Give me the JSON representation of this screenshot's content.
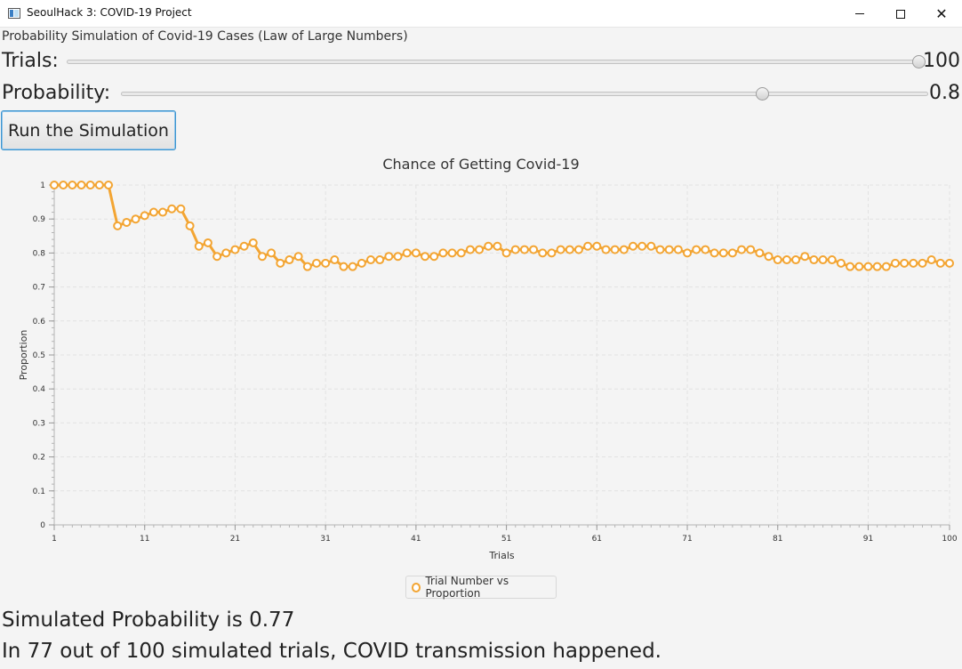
{
  "window": {
    "title": "SeoulHack 3: COVID-19 Project",
    "minimize_symbol": "",
    "maximize_symbol": "",
    "close_symbol": "✕"
  },
  "header": {
    "subtitle": "Probability Simulation of Covid-19 Cases (Law of Large Numbers)"
  },
  "controls": {
    "trials_label": "Trials:",
    "trials_value": "100",
    "trials_level": 1.0,
    "probability_label": "Probability:",
    "probability_value": "0.8",
    "probability_level": 0.8,
    "run_button": "Run the Simulation"
  },
  "chart_data": {
    "type": "line",
    "title": "Chance of Getting Covid-19",
    "xlabel": "Trials",
    "ylabel": "Proportion",
    "xlim": [
      1,
      100
    ],
    "ylim": [
      0,
      1
    ],
    "xticks": [
      "1",
      "11",
      "21",
      "31",
      "41",
      "51",
      "61",
      "71",
      "81",
      "91",
      "100"
    ],
    "yticks": [
      "0",
      "0.1",
      "0.2",
      "0.3",
      "0.4",
      "0.5",
      "0.6",
      "0.7",
      "0.8",
      "0.9",
      "1"
    ],
    "grid": true,
    "legend_position": "bottom",
    "series": [
      {
        "name": "Trial Number vs Proportion",
        "color": "#f3a533",
        "values": [
          1,
          1,
          1,
          1,
          1,
          1,
          1,
          0.88,
          0.89,
          0.9,
          0.91,
          0.92,
          0.92,
          0.93,
          0.93,
          0.88,
          0.82,
          0.83,
          0.79,
          0.8,
          0.81,
          0.82,
          0.83,
          0.79,
          0.8,
          0.77,
          0.78,
          0.79,
          0.76,
          0.77,
          0.77,
          0.78,
          0.76,
          0.76,
          0.77,
          0.78,
          0.78,
          0.79,
          0.79,
          0.8,
          0.8,
          0.79,
          0.79,
          0.8,
          0.8,
          0.8,
          0.81,
          0.81,
          0.82,
          0.82,
          0.8,
          0.81,
          0.81,
          0.81,
          0.8,
          0.8,
          0.81,
          0.81,
          0.81,
          0.82,
          0.82,
          0.81,
          0.81,
          0.81,
          0.82,
          0.82,
          0.82,
          0.81,
          0.81,
          0.81,
          0.8,
          0.81,
          0.81,
          0.8,
          0.8,
          0.8,
          0.81,
          0.81,
          0.8,
          0.79,
          0.78,
          0.78,
          0.78,
          0.79,
          0.78,
          0.78,
          0.78,
          0.77,
          0.76,
          0.76,
          0.76,
          0.76,
          0.76,
          0.77,
          0.77,
          0.77,
          0.77,
          0.78,
          0.77,
          0.77
        ]
      }
    ]
  },
  "results": {
    "line1": "Simulated Probability is 0.77",
    "line2": "In 77 out of 100 simulated trials, COVID transmission happened."
  }
}
